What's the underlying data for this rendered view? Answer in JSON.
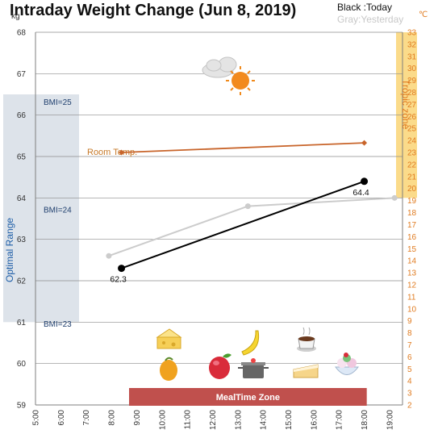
{
  "chart_data": {
    "type": "line",
    "title": "Intraday Weight Change (Jun 8, 2019)",
    "legend": {
      "today": "Black :Today",
      "yesterday": "Gray:Yesterday",
      "placement": "top-right"
    },
    "unit_left": "kg",
    "unit_right": "℃",
    "ylim": [
      59,
      68
    ],
    "yticks": [
      "59",
      "60",
      "61",
      "62",
      "63",
      "64",
      "65",
      "66",
      "67",
      "68"
    ],
    "ylim_right": [
      2,
      33
    ],
    "yticks_right": [
      "2",
      "3",
      "4",
      "5",
      "6",
      "7",
      "8",
      "9",
      "10",
      "11",
      "12",
      "13",
      "14",
      "15",
      "16",
      "17",
      "18",
      "19",
      "20",
      "21",
      "22",
      "23",
      "24",
      "25",
      "26",
      "27",
      "28",
      "29",
      "30",
      "31",
      "32",
      "33"
    ],
    "xlim": [
      5,
      20
    ],
    "xticks": [
      "5:00",
      "6:00",
      "7:00",
      "8:00",
      "9:00",
      "10:00",
      "11:00",
      "12:00",
      "13:00",
      "14:00",
      "15:00",
      "16:00",
      "17:00",
      "18:00",
      "19:00"
    ],
    "grid": true,
    "series": [
      {
        "name": "Today",
        "color": "#000000",
        "x": [
          8.4,
          18.0
        ],
        "y": [
          62.3,
          64.4
        ],
        "labels": [
          "62.3",
          "64.4"
        ]
      },
      {
        "name": "Yesterday",
        "color": "#cccccc",
        "x": [
          7.9,
          13.4,
          19.2
        ],
        "y": [
          62.6,
          63.8,
          64.0
        ]
      },
      {
        "name": "Room Temp.",
        "color": "#c8642a",
        "axis": "right",
        "x": [
          8.4,
          18.0
        ],
        "y": [
          23.0,
          23.8
        ]
      }
    ],
    "annotations": {
      "optimal_range": {
        "label": "Optimal Range",
        "x_from": 5,
        "x_to": 6.7,
        "y_from": 61,
        "y_to": 66.5,
        "color": "#dde3ea"
      },
      "bmi_labels": [
        {
          "text": "BMI=25",
          "y": 66.4
        },
        {
          "text": "BMI=24",
          "y": 63.8
        },
        {
          "text": "BMI=23",
          "y": 61.05
        }
      ],
      "tropic_zone": {
        "label": "Tropic zone",
        "x_from": 18.3,
        "x_to": 19.5,
        "y_from": 64,
        "y_to": 68,
        "color": "#fbdb8a"
      },
      "room_temp_label": "Room Temp.",
      "meal_zone": {
        "label": "MealTime Zone",
        "x_from": 8.7,
        "x_to": 18.1,
        "color": "#c0504d"
      }
    }
  },
  "icons": [
    "cloud-sun-icon",
    "cheese-icon",
    "banana-icon",
    "hot-chocolate-icon",
    "mango-icon",
    "apple-icon",
    "cooking-pot-icon",
    "cake-slice-icon",
    "ice-cream-icon"
  ]
}
